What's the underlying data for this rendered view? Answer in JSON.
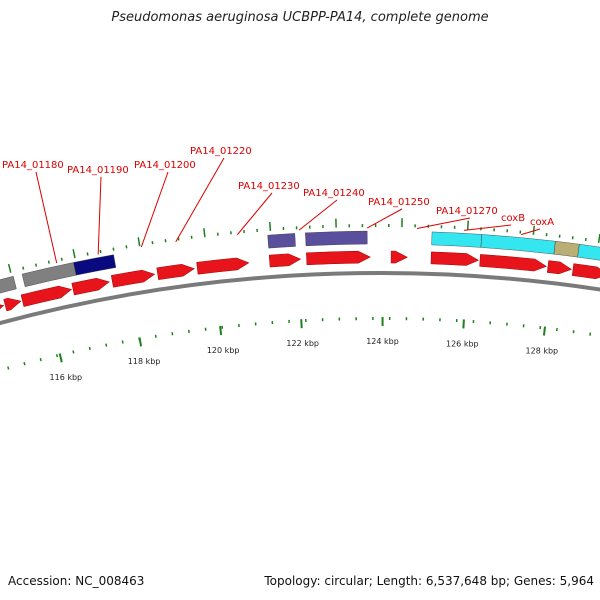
{
  "title": "Pseudomonas aeruginosa UCBPP-PA14, complete genome",
  "footer": {
    "accession": "Accession: NC_008463",
    "topology": "Topology: circular; Length: 6,537,648 bp; Genes: 5,964"
  },
  "colors": {
    "forward_gene": "#e8141c",
    "cds_grey": "#808080",
    "cds_navy": "#0a0a80",
    "cds_slate": "#5a4f9c",
    "cds_cyan": "#33e6f0",
    "cds_olive": "#b9ae74",
    "label": "#dd0000",
    "tick_mark": "#1f7f1f",
    "backbone": "#7a7a7a"
  },
  "gene_labels": [
    {
      "name": "PA14_01180"
    },
    {
      "name": "PA14_01190"
    },
    {
      "name": "PA14_01200"
    },
    {
      "name": "PA14_01220"
    },
    {
      "name": "PA14_01230"
    },
    {
      "name": "PA14_01240"
    },
    {
      "name": "PA14_01250"
    },
    {
      "name": "PA14_01270"
    },
    {
      "name": "coxB"
    },
    {
      "name": "coxA"
    }
  ],
  "scale_ticks": [
    "116 kbp",
    "118 kbp",
    "120 kbp",
    "122 kbp",
    "124 kbp",
    "126 kbp",
    "128 kbp"
  ]
}
